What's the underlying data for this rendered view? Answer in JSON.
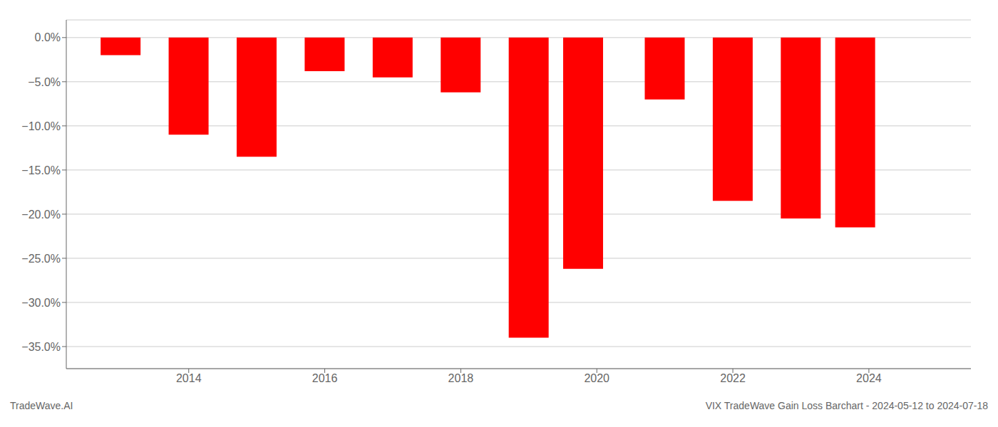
{
  "chart_data": {
    "type": "bar",
    "x": [
      2013,
      2014,
      2015,
      2016,
      2017,
      2018,
      2019,
      2019.8,
      2021,
      2022,
      2023,
      2023.8
    ],
    "values": [
      -2.0,
      -11.0,
      -13.5,
      -3.8,
      -4.5,
      -6.2,
      -34.0,
      -26.2,
      -7.0,
      -18.5,
      -20.5,
      -21.5
    ],
    "color": "#ff0000",
    "xlim": [
      2012.2,
      2025.5
    ],
    "xticks": [
      2014,
      2016,
      2018,
      2020,
      2022,
      2024
    ],
    "ylim": [
      -37.5,
      2.0
    ],
    "yticks": [
      {
        "value": 0.0,
        "label": "0.0%"
      },
      {
        "value": -5.0,
        "label": "−5.0%"
      },
      {
        "value": -10.0,
        "label": "−10.0%"
      },
      {
        "value": -15.0,
        "label": "−15.0%"
      },
      {
        "value": -20.0,
        "label": "−20.0%"
      },
      {
        "value": -25.0,
        "label": "−25.0%"
      },
      {
        "value": -30.0,
        "label": "−30.0%"
      },
      {
        "value": -35.0,
        "label": "−35.0%"
      }
    ],
    "grid": true,
    "annotations": [
      "TradeWave.AI",
      "VIX TradeWave Gain Loss Barchart - 2024-05-12 to 2024-07-18"
    ]
  }
}
